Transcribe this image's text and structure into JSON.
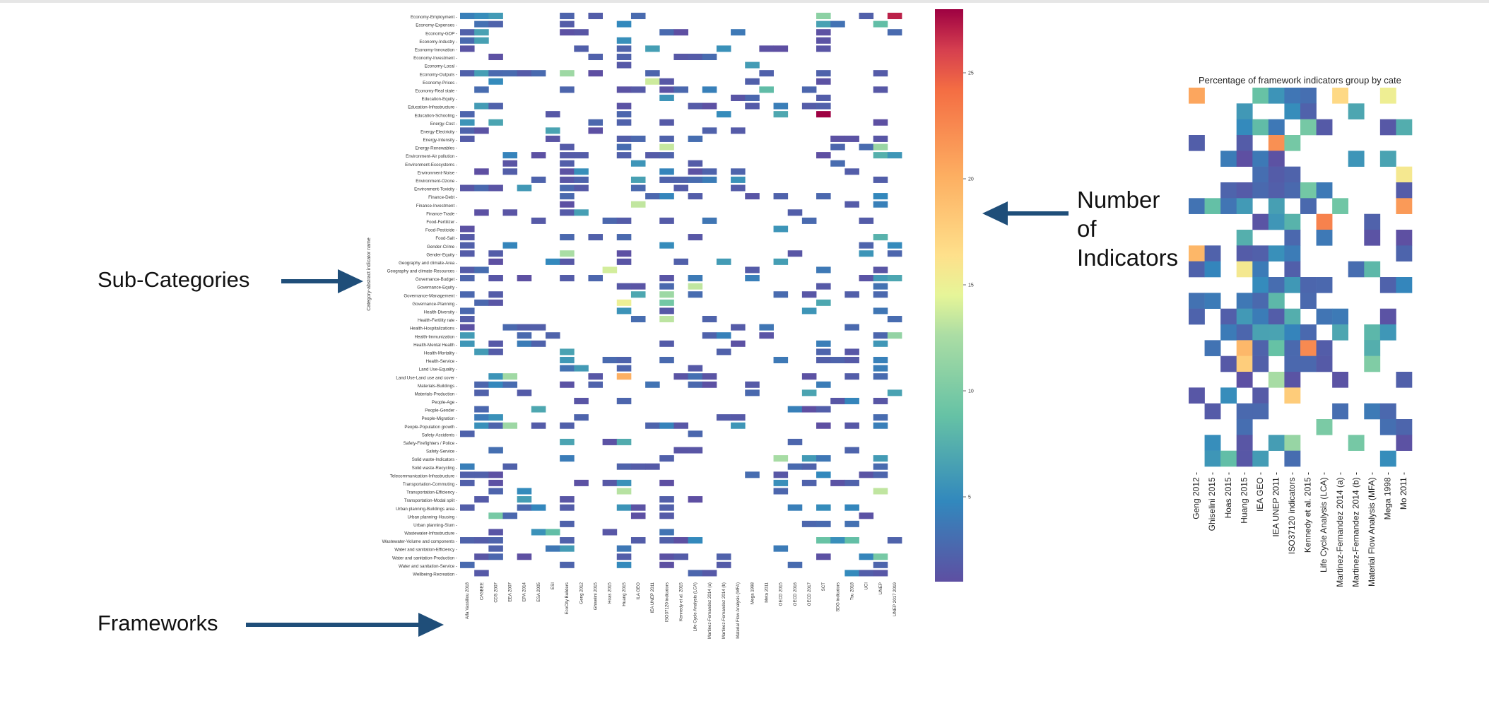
{
  "main": {
    "rows": [
      "Economy-Employment",
      "Economy-Expenses",
      "Economy-GDP",
      "Economy-Industry",
      "Economy-Innovation",
      "Economy-Investment",
      "Economy-Local",
      "Economy-Outputs",
      "Economy-Prices",
      "Economy-Real state",
      "Education-Equity",
      "Education-Infrastructure",
      "Education-Schooling",
      "Energy-Cost",
      "Energy-Electricity",
      "Energy-Intensity",
      "Energy-Renewables",
      "Environment-Air pollution",
      "Environment-Ecosystems",
      "Environment-Noise",
      "Environment-Ozone",
      "Environment-Toxicity",
      "Finance-Debt",
      "Finance-Investment",
      "Finance-Trade",
      "Food-Fertilizer",
      "Food-Pesticide",
      "Food-Salt",
      "Gender-Crime",
      "Gender-Equity",
      "Geography and climate-Area",
      "Geography and climate-Resources",
      "Governance-Budget",
      "Governance-Equity",
      "Governance-Management",
      "Governance-Planning",
      "Health-Diversity",
      "Health-Fertility rate",
      "Health-Hospitalizations",
      "Health-Immunization",
      "Health-Mental Health",
      "Health-Mortality",
      "Health-Service",
      "Land Use-Equality",
      "Land Use-Land use and cover",
      "Materials-Buildings",
      "Materials-Production",
      "People-Age",
      "People-Gender",
      "People-Migration",
      "People-Population growth",
      "Safety-Accidents",
      "Safety-Firefighters / Police",
      "Safety-Service",
      "Solid waste-Indicators",
      "Solid waste-Recycling",
      "Telecommunication-Infrastructure",
      "Transportation-Commuting",
      "Transportation-Efficiency",
      "Transportation-Modal split",
      "Urban planning-Buildings area",
      "Urban planning-Housing",
      "Urban planning-Slum",
      "Wastewater-Infrastructure",
      "Wastewater-Volume and components",
      "Water and sanitation-Efficiency",
      "Water and sanitation-Production",
      "Water and sanitation-Service",
      "Wellbeing-Recreation"
    ],
    "columns": [
      "Alfa Vassiliou 2018",
      "CASBEE",
      "CDS 2007",
      "EEA 2007",
      "EPA 2014",
      "ESA 2005",
      "ESI",
      "EcoCity Builders",
      "Geng 2012",
      "Ghiselini 2015",
      "Hoas 2015",
      "Huang 2015",
      "ILA GEO",
      "IEA UNEP 2011",
      "ISO37120 indicators",
      "Kennedy et al. 2015",
      "Life Cycle Analysis (LCA)",
      "Martinez-Fernandez 2014 (a)",
      "Martinez-Fernandez 2014 (b)",
      "Material Flow Analysis (MFA)",
      "Mega 1998",
      "Meta 2011",
      "OECD 2015",
      "OECD 2016",
      "OECD 2017",
      "SCT",
      "SDG indicators",
      "Tsu 2018",
      "UCI",
      "UNEP",
      "UNEP 2017 2019"
    ],
    "ylabel": "Category-abstract indicator name"
  },
  "colorbar": {
    "ticks": [
      "5",
      "10",
      "15",
      "20",
      "25"
    ],
    "range": [
      1,
      28
    ],
    "colormap": "Spectral_r"
  },
  "zoom": {
    "title": "Percentage of framework indicators group by cate",
    "columns": [
      "Geng 2012",
      "Ghiselini 2015",
      "Hoas 2015",
      "Huang 2015",
      "IEA GEO",
      "IEA UNEP 2011",
      "ISO37120 indicators",
      "Kennedy et al. 2015",
      "Life Cycle Analysis (LCA)",
      "Martinez-Fernandez 2014 (a)",
      "Martinez-Fernandez 2014 (b)",
      "Material Flow Analysis (MFA)",
      "Mega 1998",
      "Mo 2011"
    ]
  },
  "callouts": {
    "sub_categories": "Sub-Categories",
    "frameworks": "Frameworks",
    "num_indicators_1": "Number",
    "num_indicators_2": "of",
    "num_indicators_3": "Indicators"
  },
  "chart_data": [
    {
      "type": "heatmap",
      "title": "",
      "xlabel": "",
      "ylabel": "Category-abstract indicator name",
      "x": "main.columns",
      "y": "main.rows",
      "value_range": [
        1,
        28
      ],
      "colorbar_ticks": [
        5,
        10,
        15,
        20,
        25
      ],
      "sparse_cells_estimated": [
        {
          "row": "Education-Schooling",
          "column": "SCT",
          "value": 28
        },
        {
          "row": "Land Use-Land use and cover",
          "column": "Huang 2015",
          "value": 20
        },
        {
          "row": "Economy-Employment",
          "column": "UNEP 2017 2019",
          "value": 27
        },
        {
          "row": "Governance-Planning",
          "column": "Huang 2015",
          "value": 15
        },
        {
          "row": "Transportation-Efficiency",
          "column": "Huang 2015",
          "value": 13
        },
        {
          "row": "Land Use-Land use and cover",
          "column": "EEA 2007",
          "value": 12
        }
      ]
    },
    {
      "type": "heatmap",
      "title": "Percentage of framework indicators group by cate",
      "x": "zoom.columns"
    }
  ]
}
